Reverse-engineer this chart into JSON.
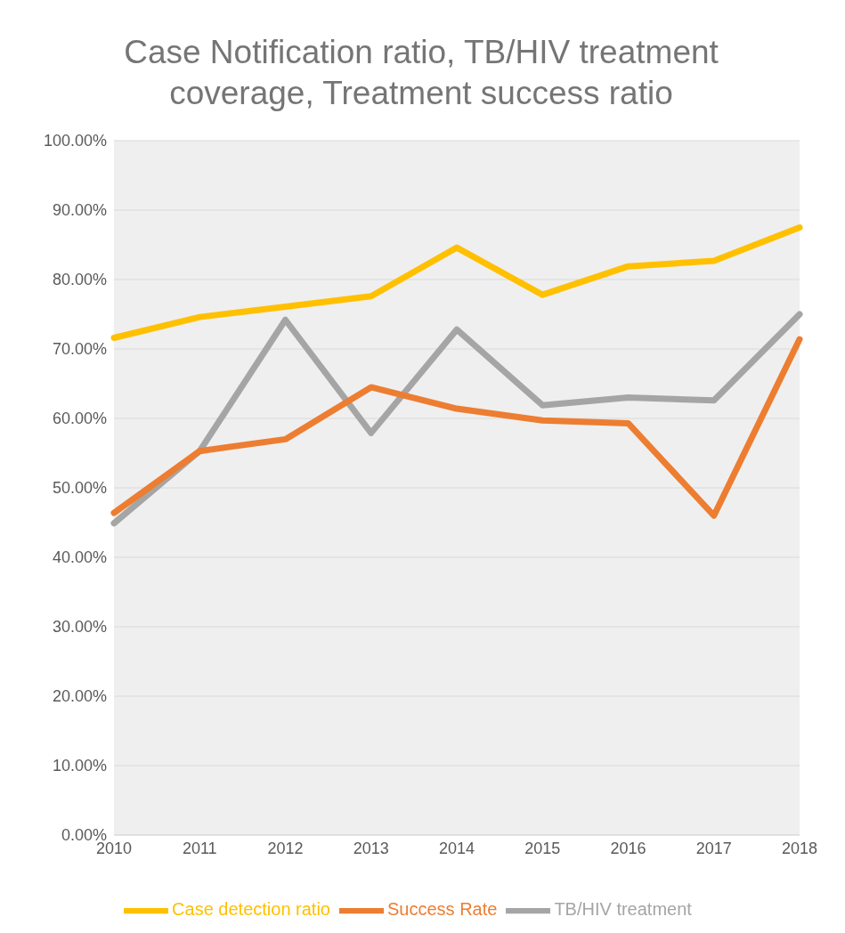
{
  "chart_data": {
    "type": "line",
    "title": "Case Notification ratio, TB/HIV treatment coverage, Treatment success ratio",
    "categories": [
      "2010",
      "2011",
      "2012",
      "2013",
      "2014",
      "2015",
      "2016",
      "2017",
      "2018"
    ],
    "series": [
      {
        "name": "Case detection ratio",
        "color": "#ffc000",
        "values": [
          71.6,
          74.6,
          76.1,
          77.6,
          84.6,
          77.8,
          81.9,
          82.7,
          87.5
        ]
      },
      {
        "name": "TB/HIV treatment",
        "color": "#a5a5a5",
        "values": [
          44.9,
          55.3,
          74.2,
          57.9,
          72.8,
          61.9,
          63.0,
          62.6,
          75.0
        ]
      },
      {
        "name": "Success Rate",
        "color": "#ed7d31",
        "values": [
          46.4,
          55.3,
          57.0,
          64.5,
          61.4,
          59.7,
          59.3,
          46.0,
          71.4
        ]
      }
    ],
    "ylim": [
      0,
      100
    ],
    "yticks": [
      {
        "value": 0,
        "label": "0.00%"
      },
      {
        "value": 10,
        "label": "10.00%"
      },
      {
        "value": 20,
        "label": "20.00%"
      },
      {
        "value": 30,
        "label": "30.00%"
      },
      {
        "value": 40,
        "label": "40.00%"
      },
      {
        "value": 50,
        "label": "50.00%"
      },
      {
        "value": 60,
        "label": "60.00%"
      },
      {
        "value": 70,
        "label": "70.00%"
      },
      {
        "value": 80,
        "label": "80.00%"
      },
      {
        "value": 90,
        "label": "90.00%"
      },
      {
        "value": 100,
        "label": "100.00%"
      }
    ],
    "grid": "y",
    "legend": "bottom",
    "marker": "none",
    "line_style": "solid"
  }
}
